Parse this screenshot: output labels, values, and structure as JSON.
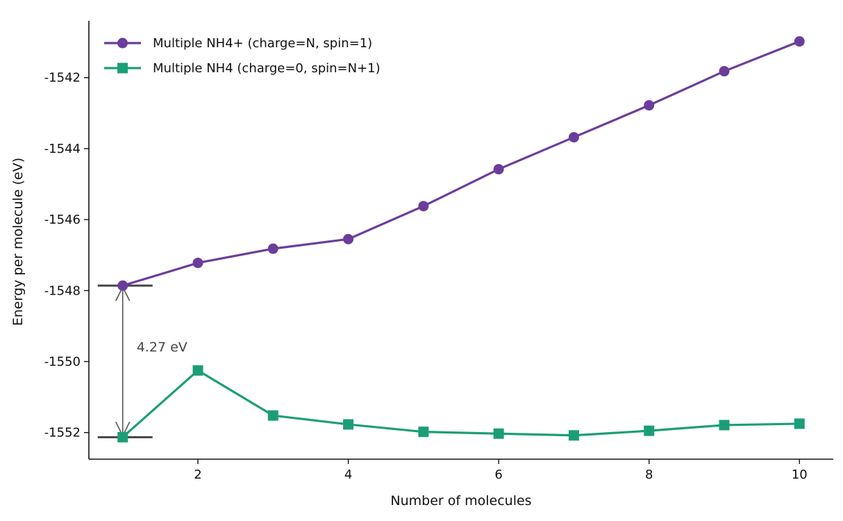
{
  "chart_data": {
    "type": "line",
    "title": "",
    "xlabel": "Number of molecules",
    "ylabel": "Energy per molecule (eV)",
    "xlim": [
      0.55,
      10.45
    ],
    "ylim": [
      -1552.75,
      -1540.4
    ],
    "xticks": [
      2,
      4,
      6,
      8,
      10
    ],
    "yticks": [
      -1552,
      -1550,
      -1548,
      -1546,
      -1544,
      -1542
    ],
    "grid": false,
    "legend_position": "top-left",
    "x": [
      1,
      2,
      3,
      4,
      5,
      6,
      7,
      8,
      9,
      10
    ],
    "series": [
      {
        "name": "Multiple NH4+ (charge=N, spin=1)",
        "color": "#6a3d9a",
        "marker": "circle",
        "values": [
          -1547.86,
          -1547.22,
          -1546.82,
          -1546.55,
          -1545.62,
          -1544.58,
          -1543.68,
          -1542.78,
          -1541.82,
          -1540.98
        ]
      },
      {
        "name": "Multiple NH4 (charge=0, spin=N+1)",
        "color": "#1b9e77",
        "marker": "square",
        "values": [
          -1552.13,
          -1550.25,
          -1551.52,
          -1551.77,
          -1551.98,
          -1552.03,
          -1552.08,
          -1551.95,
          -1551.79,
          -1551.75
        ]
      }
    ],
    "annotation": {
      "text": "4.27 eV",
      "x": 1,
      "y_top": -1547.86,
      "y_bottom": -1552.13,
      "color": "#444444"
    }
  }
}
